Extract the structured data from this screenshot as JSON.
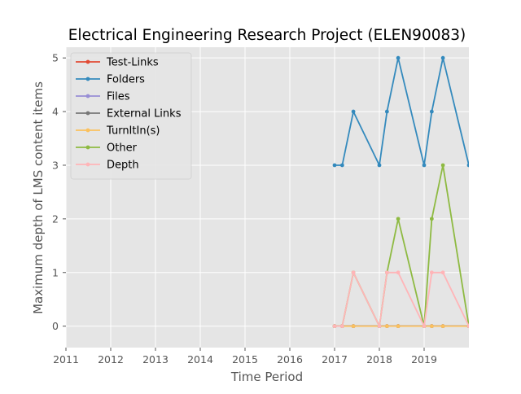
{
  "chart_data": {
    "type": "line",
    "title": "Electrical Engineering Research Project (ELEN90083)",
    "xlabel": "Time Period",
    "ylabel": "Maximum depth of LMS content items",
    "xlim": [
      2011.0,
      2020.0
    ],
    "ylim": [
      -0.4,
      5.2
    ],
    "x_ticks": [
      2011,
      2012,
      2013,
      2014,
      2015,
      2016,
      2017,
      2018,
      2019
    ],
    "y_ticks": [
      0,
      1,
      2,
      3,
      4,
      5
    ],
    "grid": true,
    "legend_position": "top-left",
    "background": "#E5E5E5",
    "x": [
      2017.0,
      2017.17,
      2017.42,
      2018.0,
      2018.17,
      2018.42,
      2019.0,
      2019.17,
      2019.42,
      2020.0
    ],
    "series": [
      {
        "name": "Test-Links",
        "color": "#E24A33",
        "values": [
          0,
          0,
          0,
          0,
          0,
          0,
          0,
          0,
          0,
          0
        ]
      },
      {
        "name": "Folders",
        "color": "#348ABD",
        "values": [
          3,
          3,
          4,
          3,
          4,
          5,
          3,
          4,
          5,
          3
        ]
      },
      {
        "name": "Files",
        "color": "#988ED5",
        "values": [
          0,
          0,
          0,
          0,
          0,
          0,
          0,
          0,
          0,
          0
        ]
      },
      {
        "name": "External Links",
        "color": "#777777",
        "values": [
          0,
          0,
          0,
          0,
          0,
          0,
          0,
          0,
          0,
          0
        ]
      },
      {
        "name": "TurnItIn(s)",
        "color": "#FBC15E",
        "values": [
          0,
          0,
          0,
          0,
          0,
          0,
          0,
          0,
          0,
          0
        ]
      },
      {
        "name": "Other",
        "color": "#8EBA42",
        "values": [
          0,
          0,
          1,
          0,
          1,
          2,
          0,
          2,
          3,
          0
        ]
      },
      {
        "name": "Depth",
        "color": "#FFB5B8",
        "values": [
          0,
          0,
          1,
          0,
          1,
          1,
          0,
          1,
          1,
          0
        ]
      }
    ]
  }
}
